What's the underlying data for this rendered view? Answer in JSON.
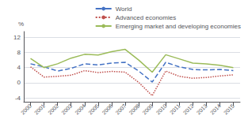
{
  "chart_data": {
    "type": "line",
    "categories": [
      "2000",
      "2001",
      "2002",
      "2003",
      "2004",
      "2005",
      "2006",
      "2007",
      "2008",
      "2009",
      "2010",
      "2011",
      "2012",
      "2013",
      "2014",
      "2015"
    ],
    "series": [
      {
        "name": "World",
        "color": "#4472C4",
        "line_style": "dashed",
        "values": [
          5.0,
          4.2,
          3.1,
          3.8,
          5.0,
          4.7,
          5.2,
          5.4,
          3.1,
          0.2,
          5.4,
          4.2,
          3.5,
          3.4,
          3.5,
          3.2
        ]
      },
      {
        "name": "Advanced economies",
        "color": "#C0504D",
        "line_style": "dotted",
        "values": [
          4.2,
          1.5,
          1.7,
          2.0,
          3.2,
          2.7,
          3.0,
          2.8,
          0.1,
          -3.4,
          3.1,
          1.7,
          1.2,
          1.4,
          1.8,
          2.1
        ]
      },
      {
        "name": "Emerging market and developing economies",
        "color": "#9BBB59",
        "line_style": "solid",
        "values": [
          6.4,
          4.0,
          5.0,
          6.5,
          7.5,
          7.3,
          8.2,
          8.8,
          6.0,
          2.8,
          7.4,
          6.3,
          5.2,
          5.0,
          4.6,
          4.0
        ]
      }
    ],
    "ylabel": "%",
    "ylim": [
      -5,
      13.5
    ],
    "yticks": [
      -4,
      0,
      4,
      8,
      12
    ],
    "grid": true,
    "legend": "upper right"
  }
}
